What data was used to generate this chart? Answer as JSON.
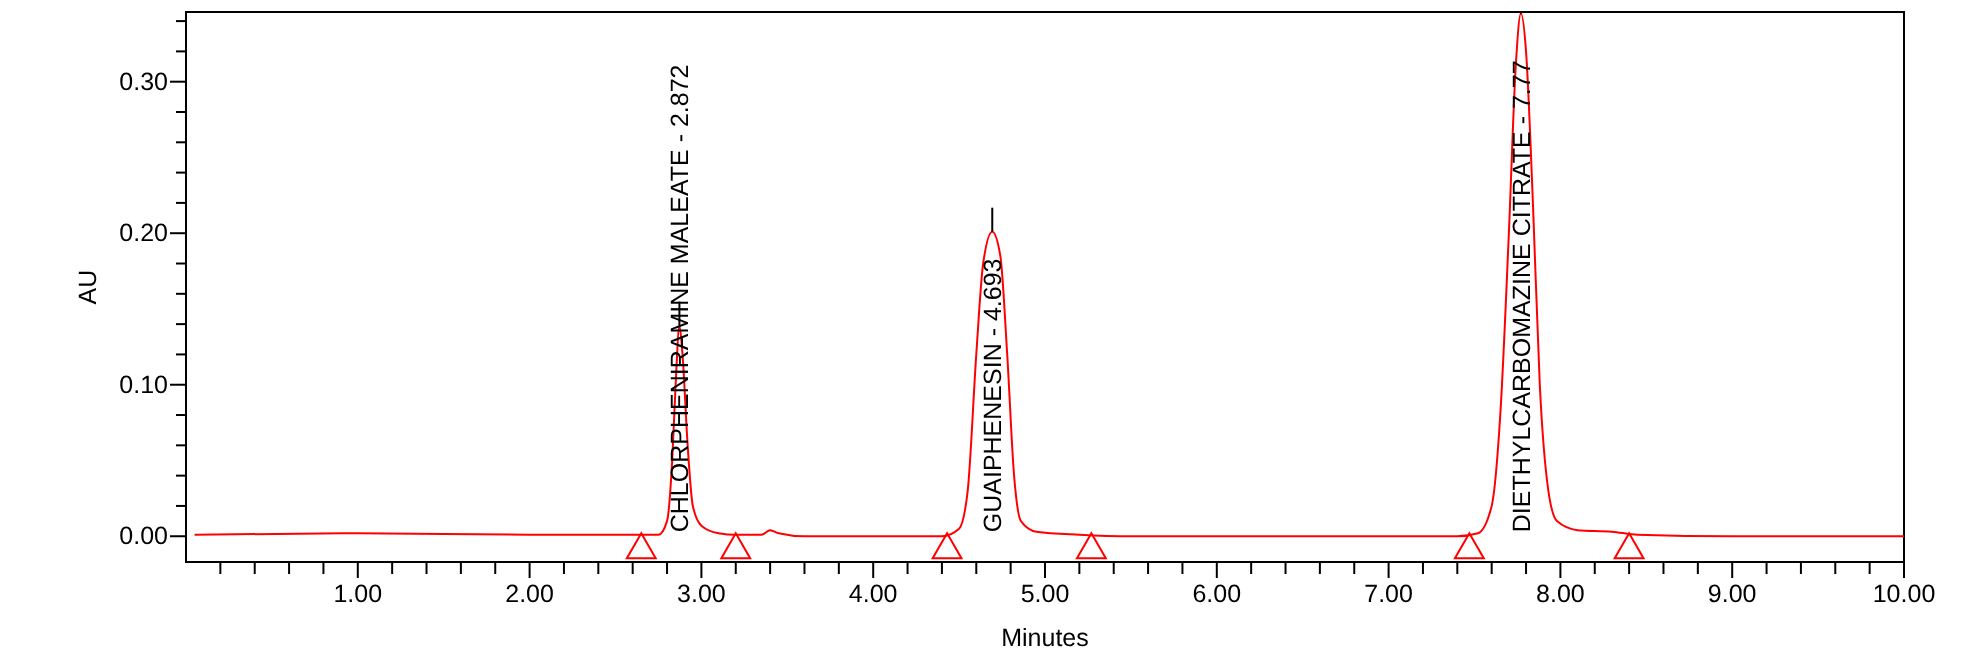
{
  "chart_data": {
    "type": "line",
    "xlabel": "Minutes",
    "ylabel": "AU",
    "xlim": [
      0,
      10
    ],
    "ylim": [
      -0.017,
      0.346
    ],
    "xticks": [
      {
        "value": 0.2,
        "label": null
      },
      {
        "value": 0.4,
        "label": null
      },
      {
        "value": 0.6,
        "label": null
      },
      {
        "value": 0.8,
        "label": null
      },
      {
        "value": 1,
        "label": "1.00"
      },
      {
        "value": 1.2,
        "label": null
      },
      {
        "value": 1.4,
        "label": null
      },
      {
        "value": 1.6,
        "label": null
      },
      {
        "value": 1.8,
        "label": null
      },
      {
        "value": 2,
        "label": "2.00"
      },
      {
        "value": 2.2,
        "label": null
      },
      {
        "value": 2.4,
        "label": null
      },
      {
        "value": 2.6,
        "label": null
      },
      {
        "value": 2.8,
        "label": null
      },
      {
        "value": 3,
        "label": "3.00"
      },
      {
        "value": 3.2,
        "label": null
      },
      {
        "value": 3.4,
        "label": null
      },
      {
        "value": 3.6,
        "label": null
      },
      {
        "value": 3.8,
        "label": null
      },
      {
        "value": 4,
        "label": "4.00"
      },
      {
        "value": 4.2,
        "label": null
      },
      {
        "value": 4.4,
        "label": null
      },
      {
        "value": 4.6,
        "label": null
      },
      {
        "value": 4.8,
        "label": null
      },
      {
        "value": 5,
        "label": "5.00"
      },
      {
        "value": 5.2,
        "label": null
      },
      {
        "value": 5.4,
        "label": null
      },
      {
        "value": 5.6,
        "label": null
      },
      {
        "value": 5.8,
        "label": null
      },
      {
        "value": 6,
        "label": "6.00"
      },
      {
        "value": 6.2,
        "label": null
      },
      {
        "value": 6.4,
        "label": null
      },
      {
        "value": 6.6,
        "label": null
      },
      {
        "value": 6.8,
        "label": null
      },
      {
        "value": 7,
        "label": "7.00"
      },
      {
        "value": 7.2,
        "label": null
      },
      {
        "value": 7.4,
        "label": null
      },
      {
        "value": 7.6,
        "label": null
      },
      {
        "value": 7.8,
        "label": null
      },
      {
        "value": 8,
        "label": "8.00"
      },
      {
        "value": 8.2,
        "label": null
      },
      {
        "value": 8.4,
        "label": null
      },
      {
        "value": 8.6,
        "label": null
      },
      {
        "value": 8.8,
        "label": null
      },
      {
        "value": 9,
        "label": "9.00"
      },
      {
        "value": 9.2,
        "label": null
      },
      {
        "value": 9.4,
        "label": null
      },
      {
        "value": 9.6,
        "label": null
      },
      {
        "value": 9.8,
        "label": null
      },
      {
        "value": 10,
        "label": "10.00"
      }
    ],
    "yticks": [
      {
        "value": 0,
        "label": "0.00"
      },
      {
        "value": 0.02,
        "label": null
      },
      {
        "value": 0.04,
        "label": null
      },
      {
        "value": 0.06,
        "label": null
      },
      {
        "value": 0.08,
        "label": null
      },
      {
        "value": 0.1,
        "label": "0.10"
      },
      {
        "value": 0.12,
        "label": null
      },
      {
        "value": 0.14,
        "label": null
      },
      {
        "value": 0.16,
        "label": null
      },
      {
        "value": 0.18,
        "label": null
      },
      {
        "value": 0.2,
        "label": "0.20"
      },
      {
        "value": 0.22,
        "label": null
      },
      {
        "value": 0.24,
        "label": null
      },
      {
        "value": 0.26,
        "label": null
      },
      {
        "value": 0.28,
        "label": null
      },
      {
        "value": 0.3,
        "label": "0.30"
      },
      {
        "value": 0.32,
        "label": null
      },
      {
        "value": 0.34,
        "label": null
      }
    ],
    "grid": false,
    "series": [
      {
        "type": "line",
        "color": "#ff0000",
        "marker": "none",
        "x": [
          0.05,
          1,
          2,
          2.6,
          2.75,
          2.8,
          2.83,
          2.85,
          2.872,
          2.89,
          2.92,
          2.95,
          3.0,
          3.1,
          3.2,
          3.35,
          3.4,
          3.45,
          3.6,
          4.4,
          4.5,
          4.55,
          4.6,
          4.64,
          4.693,
          4.74,
          4.78,
          4.82,
          4.86,
          4.95,
          5.2,
          5.5,
          7.4,
          7.52,
          7.6,
          7.65,
          7.7,
          7.74,
          7.77,
          7.8,
          7.84,
          7.88,
          7.93,
          7.98,
          8.1,
          8.3,
          8.45,
          9,
          10
        ],
        "values": [
          0.001,
          0.002,
          0.001,
          0.001,
          0.001,
          0.01,
          0.05,
          0.1,
          0.139,
          0.12,
          0.06,
          0.02,
          0.007,
          0.002,
          0.001,
          0.001,
          0.004,
          0.002,
          0,
          0,
          0.005,
          0.03,
          0.12,
          0.18,
          0.201,
          0.185,
          0.12,
          0.04,
          0.01,
          0.003,
          0.001,
          0,
          0,
          0.002,
          0.02,
          0.08,
          0.2,
          0.31,
          0.345,
          0.32,
          0.22,
          0.1,
          0.03,
          0.01,
          0.004,
          0.003,
          0.001,
          0,
          0
        ]
      },
      {
        "type": "scatter",
        "color": "#ff0000",
        "marker": "triangle",
        "x": [
          2.65,
          3.2,
          4.43,
          5.27,
          7.47,
          8.4
        ],
        "values": [
          -0.009,
          -0.009,
          -0.009,
          -0.009,
          -0.009,
          -0.009
        ]
      }
    ],
    "annotations": [
      {
        "text": "CHLORPHENIRAMINE MALEATE - 2.872",
        "x": 2.872,
        "y": 0.139
      },
      {
        "text": "GUAIPHENESIN - 4.693",
        "x": 4.693,
        "y": 0.201
      },
      {
        "text": "DIETHYLCARBOMAZINE CITRATE - 7.77",
        "x": 7.77,
        "y": 0.345
      }
    ]
  }
}
